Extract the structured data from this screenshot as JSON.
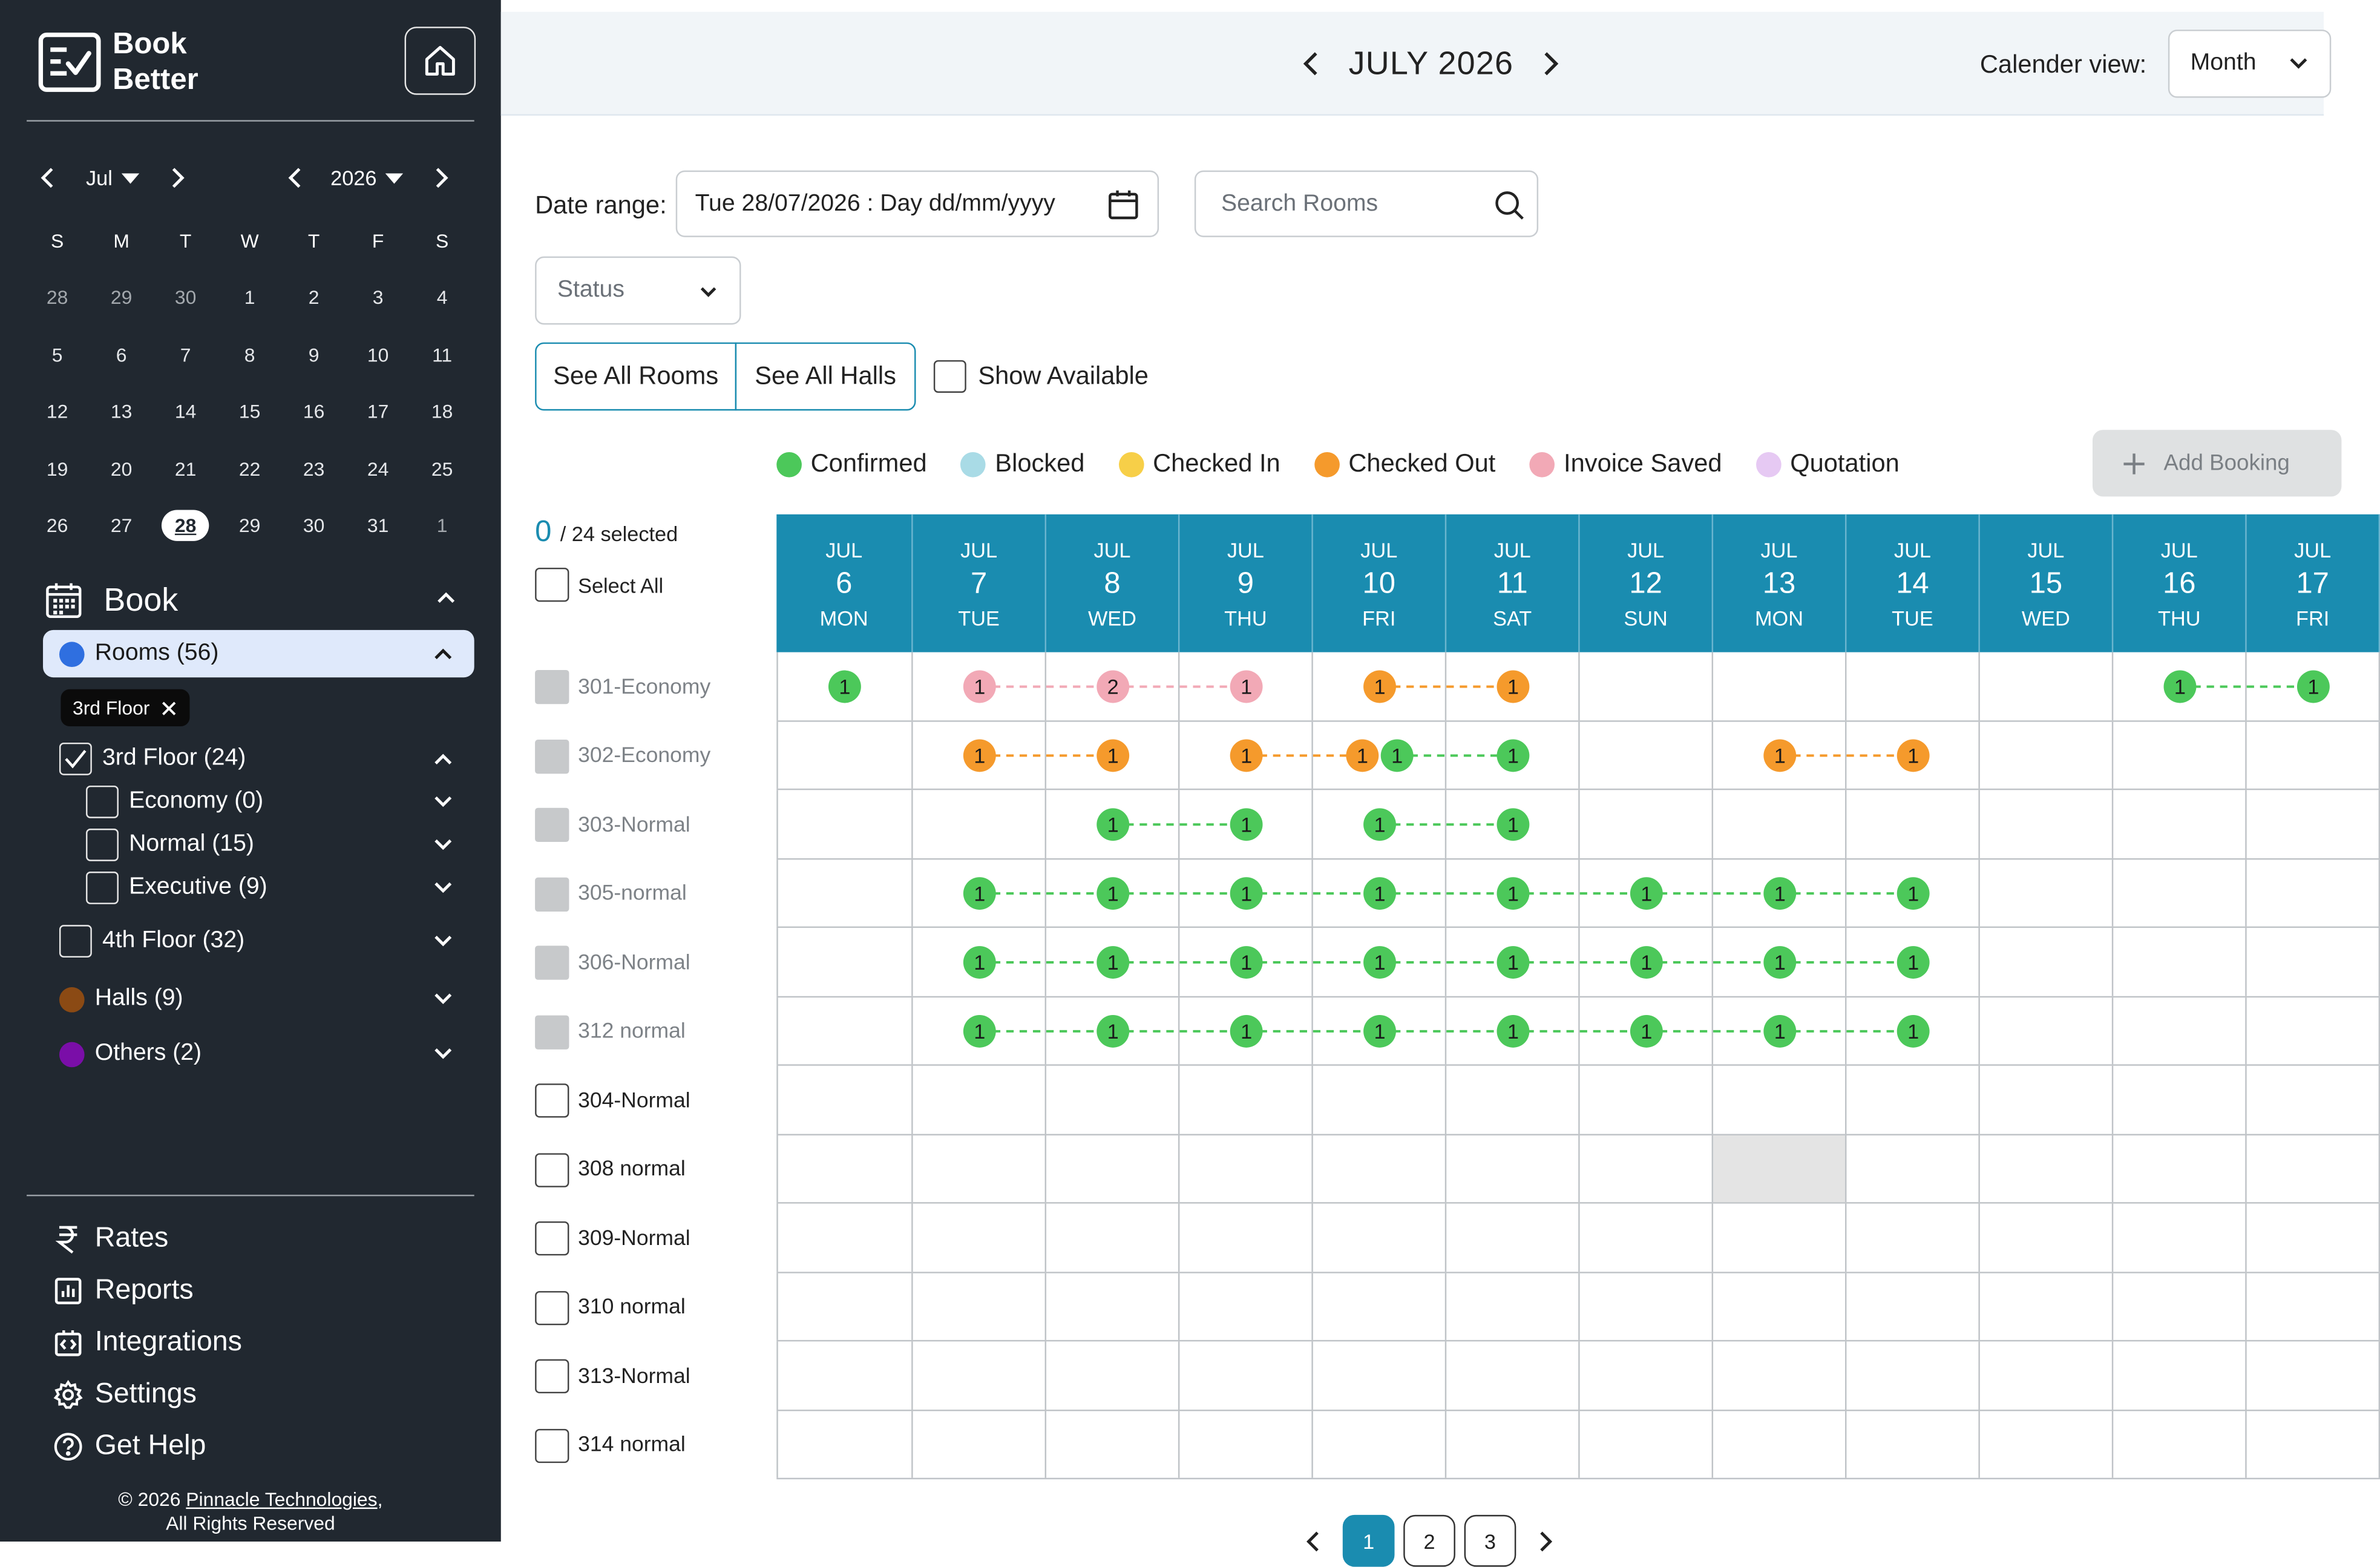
{
  "brand": {
    "line1": "Book",
    "line2": "Better"
  },
  "mini_calendar": {
    "month_label": "Jul",
    "year_label": "2026",
    "weekdays": [
      "S",
      "M",
      "T",
      "W",
      "T",
      "F",
      "S"
    ],
    "weeks": [
      [
        {
          "d": "28",
          "muted": true
        },
        {
          "d": "29",
          "muted": true
        },
        {
          "d": "30",
          "muted": true
        },
        {
          "d": "1"
        },
        {
          "d": "2"
        },
        {
          "d": "3"
        },
        {
          "d": "4"
        }
      ],
      [
        {
          "d": "5"
        },
        {
          "d": "6"
        },
        {
          "d": "7"
        },
        {
          "d": "8"
        },
        {
          "d": "9"
        },
        {
          "d": "10"
        },
        {
          "d": "11"
        }
      ],
      [
        {
          "d": "12"
        },
        {
          "d": "13"
        },
        {
          "d": "14"
        },
        {
          "d": "15"
        },
        {
          "d": "16"
        },
        {
          "d": "17"
        },
        {
          "d": "18"
        }
      ],
      [
        {
          "d": "19"
        },
        {
          "d": "20"
        },
        {
          "d": "21"
        },
        {
          "d": "22"
        },
        {
          "d": "23"
        },
        {
          "d": "24"
        },
        {
          "d": "25"
        }
      ],
      [
        {
          "d": "26"
        },
        {
          "d": "27"
        },
        {
          "d": "28",
          "today": true
        },
        {
          "d": "29"
        },
        {
          "d": "30"
        },
        {
          "d": "31"
        },
        {
          "d": "1",
          "muted": true
        }
      ]
    ]
  },
  "book_section": {
    "title": "Book",
    "rooms_label": "Rooms  (56)",
    "rooms_color": "#2f6fe0",
    "floor_chip": "3rd Floor",
    "tree": [
      {
        "label": "3rd Floor (24)",
        "checked": true,
        "level": 0
      },
      {
        "label": "Economy (0)",
        "checked": false,
        "level": 1
      },
      {
        "label": "Normal (15)",
        "checked": false,
        "level": 1
      },
      {
        "label": "Executive (9)",
        "checked": false,
        "level": 1
      },
      {
        "label": "4th Floor (32)",
        "checked": false,
        "level": 0
      }
    ],
    "halls_label": "Halls  (9)",
    "halls_color": "#8b4a14",
    "others_label": "Others  (2)",
    "others_color": "#7a0ea8"
  },
  "nav": [
    {
      "label": "Rates",
      "icon": "rupee-icon"
    },
    {
      "label": "Reports",
      "icon": "reports-icon"
    },
    {
      "label": "Integrations",
      "icon": "integrations-icon"
    },
    {
      "label": "Settings",
      "icon": "gear-icon"
    },
    {
      "label": "Get Help",
      "icon": "help-icon"
    }
  ],
  "footer": {
    "line1_prefix": "© 2026 ",
    "company": "Pinnacle Technologies",
    "line1_suffix": ",",
    "line2": "All Rights Reserved"
  },
  "header": {
    "month_title": "JULY 2026",
    "calendar_view_label": "Calender view:",
    "calendar_view_value": "Month"
  },
  "filters": {
    "date_range_label": "Date range:",
    "date_range_value": "Tue 28/07/2026 : Day dd/mm/yyyy",
    "search_placeholder": "Search Rooms",
    "status_placeholder": "Status",
    "see_all_rooms": "See All Rooms",
    "see_all_halls": "See All Halls",
    "show_available": "Show Available"
  },
  "legend": [
    {
      "label": "Confirmed",
      "color": "#4cc85a"
    },
    {
      "label": "Blocked",
      "color": "#a9dbe6"
    },
    {
      "label": "Checked In",
      "color": "#f7cf48"
    },
    {
      "label": "Checked Out",
      "color": "#f59a2c"
    },
    {
      "label": "Invoice Saved",
      "color": "#f2a9b6"
    },
    {
      "label": "Quotation",
      "color": "#e6c9f3"
    }
  ],
  "add_booking": "Add Booking",
  "selection": {
    "count": "0",
    "total_text": " / 24 selected",
    "select_all": "Select All"
  },
  "days": [
    {
      "m": "JUL",
      "d": "6",
      "w": "MON"
    },
    {
      "m": "JUL",
      "d": "7",
      "w": "TUE"
    },
    {
      "m": "JUL",
      "d": "8",
      "w": "WED"
    },
    {
      "m": "JUL",
      "d": "9",
      "w": "THU"
    },
    {
      "m": "JUL",
      "d": "10",
      "w": "FRI"
    },
    {
      "m": "JUL",
      "d": "11",
      "w": "SAT"
    },
    {
      "m": "JUL",
      "d": "12",
      "w": "SUN"
    },
    {
      "m": "JUL",
      "d": "13",
      "w": "MON"
    },
    {
      "m": "JUL",
      "d": "14",
      "w": "TUE"
    },
    {
      "m": "JUL",
      "d": "15",
      "w": "WED"
    },
    {
      "m": "JUL",
      "d": "16",
      "w": "THU"
    },
    {
      "m": "JUL",
      "d": "17",
      "w": "FRI"
    }
  ],
  "rooms": [
    {
      "name": "301-Economy",
      "disabled": true
    },
    {
      "name": "302-Economy",
      "disabled": true
    },
    {
      "name": "303-Normal",
      "disabled": true
    },
    {
      "name": "305-normal",
      "disabled": true
    },
    {
      "name": "306-Normal",
      "disabled": true
    },
    {
      "name": "312 normal",
      "disabled": true
    },
    {
      "name": "304-Normal",
      "disabled": false
    },
    {
      "name": "308 normal",
      "disabled": false
    },
    {
      "name": "309-Normal",
      "disabled": false
    },
    {
      "name": "310 normal",
      "disabled": false
    },
    {
      "name": "313-Normal",
      "disabled": false
    },
    {
      "name": "314 normal",
      "disabled": false
    }
  ],
  "blocked_cells": [
    {
      "room": 7,
      "day": 7
    }
  ],
  "bookings": [
    {
      "room": 0,
      "status": "Confirmed",
      "markers": [
        {
          "day": 0,
          "n": "1"
        }
      ]
    },
    {
      "room": 0,
      "status": "Invoice Saved",
      "markers": [
        {
          "day": 1,
          "n": "1"
        },
        {
          "day": 2,
          "n": "2"
        },
        {
          "day": 3,
          "n": "1"
        }
      ]
    },
    {
      "room": 0,
      "status": "Checked Out",
      "markers": [
        {
          "day": 4,
          "n": "1"
        },
        {
          "day": 5,
          "n": "1"
        }
      ]
    },
    {
      "room": 0,
      "status": "Confirmed",
      "markers": [
        {
          "day": 10,
          "n": "1"
        },
        {
          "day": 11,
          "n": "1"
        }
      ]
    },
    {
      "room": 1,
      "status": "Checked Out",
      "markers": [
        {
          "day": 1,
          "n": "1"
        },
        {
          "day": 2,
          "n": "1"
        }
      ]
    },
    {
      "room": 1,
      "status": "Checked Out",
      "markers": [
        {
          "day": 3,
          "n": "1"
        },
        {
          "day": 3.87,
          "n": "1"
        }
      ]
    },
    {
      "room": 1,
      "status": "Confirmed",
      "markers": [
        {
          "day": 4.13,
          "n": "1"
        },
        {
          "day": 5,
          "n": "1"
        }
      ]
    },
    {
      "room": 1,
      "status": "Checked Out",
      "markers": [
        {
          "day": 7,
          "n": "1"
        },
        {
          "day": 8,
          "n": "1"
        }
      ]
    },
    {
      "room": 2,
      "status": "Confirmed",
      "markers": [
        {
          "day": 2,
          "n": "1"
        },
        {
          "day": 3,
          "n": "1"
        }
      ]
    },
    {
      "room": 2,
      "status": "Confirmed",
      "markers": [
        {
          "day": 4,
          "n": "1"
        },
        {
          "day": 5,
          "n": "1"
        }
      ]
    },
    {
      "room": 3,
      "status": "Confirmed",
      "markers": [
        {
          "day": 1,
          "n": "1"
        },
        {
          "day": 2,
          "n": "1"
        },
        {
          "day": 3,
          "n": "1"
        },
        {
          "day": 4,
          "n": "1"
        },
        {
          "day": 5,
          "n": "1"
        },
        {
          "day": 6,
          "n": "1"
        },
        {
          "day": 7,
          "n": "1"
        },
        {
          "day": 8,
          "n": "1"
        }
      ]
    },
    {
      "room": 4,
      "status": "Confirmed",
      "markers": [
        {
          "day": 1,
          "n": "1"
        },
        {
          "day": 2,
          "n": "1"
        },
        {
          "day": 3,
          "n": "1"
        },
        {
          "day": 4,
          "n": "1"
        },
        {
          "day": 5,
          "n": "1"
        },
        {
          "day": 6,
          "n": "1"
        },
        {
          "day": 7,
          "n": "1"
        },
        {
          "day": 8,
          "n": "1"
        }
      ]
    },
    {
      "room": 5,
      "status": "Confirmed",
      "markers": [
        {
          "day": 1,
          "n": "1"
        },
        {
          "day": 2,
          "n": "1"
        },
        {
          "day": 3,
          "n": "1"
        },
        {
          "day": 4,
          "n": "1"
        },
        {
          "day": 5,
          "n": "1"
        },
        {
          "day": 6,
          "n": "1"
        },
        {
          "day": 7,
          "n": "1"
        },
        {
          "day": 8,
          "n": "1"
        }
      ]
    }
  ],
  "pagination": {
    "pages": [
      "1",
      "2",
      "3"
    ],
    "active": "1"
  }
}
